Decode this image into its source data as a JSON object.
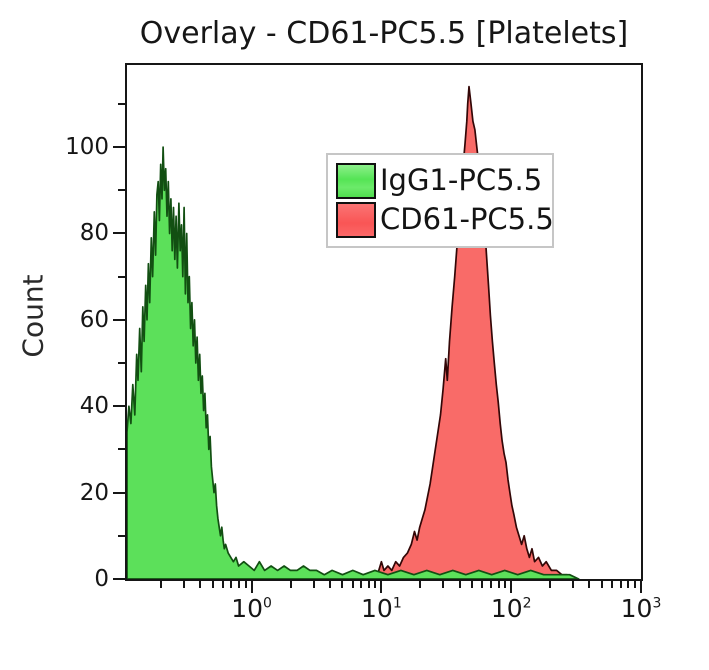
{
  "title": "Overlay - CD61-PC5.5 [Platelets]",
  "legend": {
    "items": [
      {
        "label": "IgG1-PC5.5",
        "color": "#58e658"
      },
      {
        "label": "CD61-PC5.5",
        "color": "#f95d5d"
      }
    ]
  },
  "axes": {
    "x": {
      "scale": "log",
      "min_log": -0.96,
      "max_log": 3,
      "major_ticks": [
        {
          "log": 0,
          "base": "10",
          "exp": "0"
        },
        {
          "log": 1,
          "base": "10",
          "exp": "1"
        },
        {
          "log": 2,
          "base": "10",
          "exp": "2"
        },
        {
          "log": 3,
          "base": "10",
          "exp": "3"
        }
      ],
      "minor_ticks_log": [
        -0.699,
        -0.523,
        -0.398,
        -0.301,
        -0.222,
        -0.155,
        -0.097,
        -0.046,
        0.301,
        0.477,
        0.602,
        0.699,
        0.778,
        0.845,
        0.903,
        0.954,
        1.301,
        1.477,
        1.602,
        1.699,
        1.778,
        1.845,
        1.903,
        1.954,
        2.301,
        2.477,
        2.602,
        2.699,
        2.778,
        2.845,
        2.903,
        2.954
      ]
    },
    "y": {
      "label": "Count",
      "max": 119,
      "major_ticks": [
        0,
        20,
        40,
        60,
        80,
        100
      ],
      "minor_ticks": [
        10,
        30,
        50,
        70,
        90,
        110
      ]
    }
  },
  "chart_data": {
    "type": "area",
    "subtype": "flow-cytometry-histogram-overlay",
    "title": "Overlay - CD61-PC5.5 [Platelets]",
    "xlabel": "",
    "ylabel": "Count",
    "xscale": "log",
    "xlim_log10": [
      -0.96,
      3
    ],
    "ylim": [
      0,
      119
    ],
    "grid": false,
    "legend_position": "upper-left-inside",
    "series": [
      {
        "name": "CD61-PC5.5",
        "fill": "#f96b68",
        "stroke": "#330707",
        "points_log10x_count": [
          [
            0.96,
            0
          ],
          [
            0.98,
            2
          ],
          [
            1.0,
            4
          ],
          [
            1.02,
            2
          ],
          [
            1.05,
            3
          ],
          [
            1.08,
            2
          ],
          [
            1.11,
            4
          ],
          [
            1.14,
            3
          ],
          [
            1.17,
            5
          ],
          [
            1.2,
            6
          ],
          [
            1.23,
            8
          ],
          [
            1.255,
            11
          ],
          [
            1.275,
            9
          ],
          [
            1.295,
            12
          ],
          [
            1.315,
            14
          ],
          [
            1.335,
            16
          ],
          [
            1.355,
            19
          ],
          [
            1.375,
            22
          ],
          [
            1.395,
            26
          ],
          [
            1.415,
            30
          ],
          [
            1.435,
            34
          ],
          [
            1.455,
            38
          ],
          [
            1.475,
            44
          ],
          [
            1.495,
            51
          ],
          [
            1.508,
            46
          ],
          [
            1.525,
            55
          ],
          [
            1.545,
            63
          ],
          [
            1.565,
            70
          ],
          [
            1.585,
            78
          ],
          [
            1.605,
            86
          ],
          [
            1.625,
            94
          ],
          [
            1.645,
            101
          ],
          [
            1.658,
            106
          ],
          [
            1.665,
            110
          ],
          [
            1.675,
            114
          ],
          [
            1.69,
            110
          ],
          [
            1.705,
            106
          ],
          [
            1.72,
            104
          ],
          [
            1.735,
            100
          ],
          [
            1.75,
            96
          ],
          [
            1.765,
            92
          ],
          [
            1.78,
            88
          ],
          [
            1.795,
            82
          ],
          [
            1.81,
            75
          ],
          [
            1.825,
            68
          ],
          [
            1.84,
            61
          ],
          [
            1.855,
            55
          ],
          [
            1.87,
            50
          ],
          [
            1.885,
            45
          ],
          [
            1.9,
            41
          ],
          [
            1.915,
            36
          ],
          [
            1.93,
            32
          ],
          [
            1.945,
            29
          ],
          [
            1.96,
            27
          ],
          [
            1.975,
            23
          ],
          [
            1.99,
            20
          ],
          [
            2.005,
            17
          ],
          [
            2.02,
            15
          ],
          [
            2.04,
            12
          ],
          [
            2.06,
            10
          ],
          [
            2.08,
            8
          ],
          [
            2.1,
            10
          ],
          [
            2.12,
            7
          ],
          [
            2.14,
            5
          ],
          [
            2.16,
            7
          ],
          [
            2.18,
            4
          ],
          [
            2.21,
            5
          ],
          [
            2.24,
            3
          ],
          [
            2.27,
            4
          ],
          [
            2.31,
            2
          ],
          [
            2.35,
            2
          ],
          [
            2.39,
            1
          ],
          [
            2.43,
            1
          ],
          [
            2.47,
            0
          ]
        ]
      },
      {
        "name": "IgG1-PC5.5",
        "fill": "#5ce05a",
        "stroke": "#124f12",
        "points_log10x_count": [
          [
            -0.96,
            34
          ],
          [
            -0.945,
            40
          ],
          [
            -0.93,
            36
          ],
          [
            -0.915,
            45
          ],
          [
            -0.9,
            38
          ],
          [
            -0.885,
            52
          ],
          [
            -0.875,
            46
          ],
          [
            -0.862,
            58
          ],
          [
            -0.85,
            48
          ],
          [
            -0.838,
            63
          ],
          [
            -0.828,
            55
          ],
          [
            -0.816,
            68
          ],
          [
            -0.806,
            60
          ],
          [
            -0.795,
            73
          ],
          [
            -0.785,
            64
          ],
          [
            -0.773,
            79
          ],
          [
            -0.763,
            70
          ],
          [
            -0.75,
            85
          ],
          [
            -0.74,
            75
          ],
          [
            -0.73,
            89
          ],
          [
            -0.72,
            92
          ],
          [
            -0.71,
            83
          ],
          [
            -0.7,
            96
          ],
          [
            -0.69,
            88
          ],
          [
            -0.682,
            100
          ],
          [
            -0.672,
            90
          ],
          [
            -0.662,
            95
          ],
          [
            -0.652,
            84
          ],
          [
            -0.642,
            92
          ],
          [
            -0.632,
            80
          ],
          [
            -0.622,
            88
          ],
          [
            -0.612,
            76
          ],
          [
            -0.602,
            86
          ],
          [
            -0.592,
            74
          ],
          [
            -0.582,
            84
          ],
          [
            -0.572,
            72
          ],
          [
            -0.56,
            87
          ],
          [
            -0.55,
            76
          ],
          [
            -0.54,
            82
          ],
          [
            -0.53,
            70
          ],
          [
            -0.52,
            86
          ],
          [
            -0.51,
            66
          ],
          [
            -0.5,
            80
          ],
          [
            -0.49,
            64
          ],
          [
            -0.48,
            70
          ],
          [
            -0.47,
            58
          ],
          [
            -0.46,
            64
          ],
          [
            -0.45,
            54
          ],
          [
            -0.44,
            60
          ],
          [
            -0.43,
            50
          ],
          [
            -0.42,
            56
          ],
          [
            -0.41,
            46
          ],
          [
            -0.4,
            52
          ],
          [
            -0.39,
            43
          ],
          [
            -0.38,
            47
          ],
          [
            -0.37,
            39
          ],
          [
            -0.36,
            43
          ],
          [
            -0.35,
            35
          ],
          [
            -0.34,
            38
          ],
          [
            -0.33,
            30
          ],
          [
            -0.32,
            33
          ],
          [
            -0.31,
            26
          ],
          [
            -0.3,
            23
          ],
          [
            -0.29,
            20
          ],
          [
            -0.28,
            22
          ],
          [
            -0.27,
            17
          ],
          [
            -0.26,
            14
          ],
          [
            -0.25,
            12
          ],
          [
            -0.24,
            10
          ],
          [
            -0.23,
            12
          ],
          [
            -0.22,
            9
          ],
          [
            -0.21,
            7
          ],
          [
            -0.2,
            8
          ],
          [
            -0.18,
            6
          ],
          [
            -0.16,
            5
          ],
          [
            -0.14,
            4
          ],
          [
            -0.12,
            5
          ],
          [
            -0.1,
            3
          ],
          [
            -0.06,
            4
          ],
          [
            -0.02,
            3
          ],
          [
            0.02,
            2
          ],
          [
            0.06,
            4
          ],
          [
            0.1,
            2
          ],
          [
            0.15,
            3
          ],
          [
            0.2,
            2
          ],
          [
            0.25,
            3
          ],
          [
            0.3,
            2
          ],
          [
            0.35,
            2
          ],
          [
            0.4,
            3
          ],
          [
            0.45,
            2
          ],
          [
            0.5,
            2
          ],
          [
            0.56,
            1
          ],
          [
            0.62,
            2
          ],
          [
            0.7,
            1
          ],
          [
            0.78,
            2
          ],
          [
            0.86,
            1
          ],
          [
            0.95,
            2
          ],
          [
            1.05,
            1
          ],
          [
            1.15,
            2
          ],
          [
            1.25,
            1
          ],
          [
            1.35,
            2
          ],
          [
            1.45,
            1
          ],
          [
            1.55,
            2
          ],
          [
            1.65,
            1
          ],
          [
            1.75,
            2
          ],
          [
            1.85,
            1
          ],
          [
            1.95,
            2
          ],
          [
            2.05,
            1
          ],
          [
            2.15,
            2
          ],
          [
            2.25,
            1
          ],
          [
            2.35,
            1
          ],
          [
            2.45,
            1
          ],
          [
            2.52,
            0
          ]
        ]
      }
    ]
  }
}
